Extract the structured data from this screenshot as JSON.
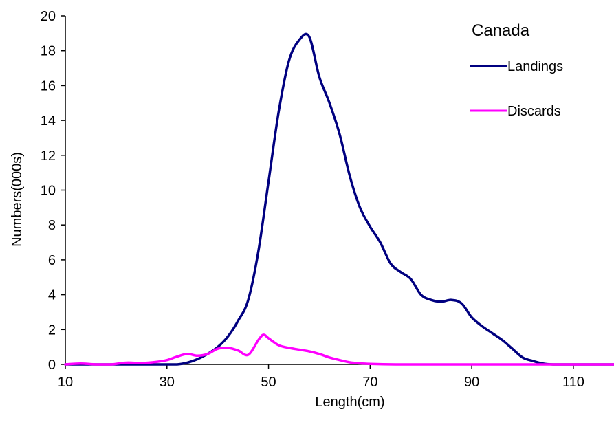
{
  "chart_data": {
    "type": "line",
    "title": "",
    "xlabel": "Length(cm)",
    "ylabel": "Numbers(000s)",
    "xlim": [
      10,
      118
    ],
    "ylim": [
      0,
      20
    ],
    "xticks": [
      10,
      30,
      50,
      70,
      90,
      110
    ],
    "yticks": [
      0,
      2,
      4,
      6,
      8,
      10,
      12,
      14,
      16,
      18,
      20
    ],
    "grid": false,
    "legend": {
      "title": "Canada",
      "position": "top-right"
    },
    "series": [
      {
        "name": "Landings",
        "color": "#000080",
        "x": [
          10,
          20,
          30,
          32,
          34,
          36,
          38,
          40,
          42,
          44,
          46,
          48,
          50,
          52,
          54,
          56,
          58,
          60,
          62,
          64,
          66,
          68,
          70,
          72,
          74,
          76,
          78,
          80,
          82,
          84,
          86,
          88,
          90,
          92,
          94,
          96,
          98,
          100,
          102,
          104,
          106,
          110,
          118
        ],
        "y": [
          0,
          0,
          0,
          0,
          0.1,
          0.3,
          0.6,
          1.0,
          1.6,
          2.5,
          3.7,
          6.5,
          10.5,
          14.5,
          17.4,
          18.6,
          18.8,
          16.5,
          15.0,
          13.2,
          10.8,
          9.0,
          7.9,
          7.0,
          5.8,
          5.3,
          4.9,
          4.0,
          3.7,
          3.6,
          3.7,
          3.5,
          2.7,
          2.2,
          1.8,
          1.4,
          0.9,
          0.4,
          0.2,
          0.05,
          0,
          0,
          0
        ]
      },
      {
        "name": "Discards",
        "color": "#ff00ff",
        "x": [
          10,
          13,
          16,
          19,
          22,
          25,
          28,
          30,
          32,
          34,
          36,
          38,
          40,
          42,
          44,
          46,
          48,
          49,
          50,
          52,
          54,
          56,
          58,
          60,
          62,
          64,
          66,
          68,
          70,
          75,
          80,
          90,
          100,
          110,
          118
        ],
        "y": [
          0,
          0.05,
          0,
          0,
          0.1,
          0.08,
          0.15,
          0.25,
          0.45,
          0.6,
          0.5,
          0.6,
          0.9,
          0.95,
          0.8,
          0.55,
          1.4,
          1.7,
          1.5,
          1.1,
          0.95,
          0.85,
          0.75,
          0.6,
          0.4,
          0.25,
          0.12,
          0.06,
          0.03,
          0,
          0,
          0,
          0,
          0,
          0
        ]
      }
    ]
  }
}
